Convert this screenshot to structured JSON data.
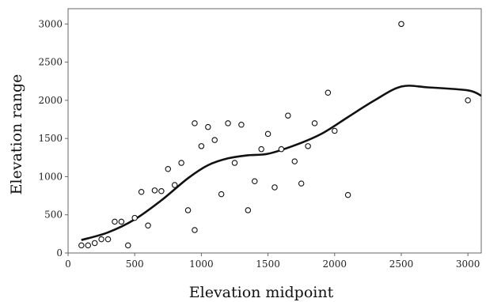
{
  "chart_data": {
    "type": "scatter",
    "xlabel": "Elevation midpoint",
    "ylabel": "Elevation range",
    "xlim": [
      0,
      3100
    ],
    "ylim": [
      0,
      3200
    ],
    "xticks": [
      0,
      500,
      1000,
      1500,
      2000,
      2500,
      3000
    ],
    "yticks": [
      0,
      500,
      1000,
      1500,
      2000,
      2500,
      3000
    ],
    "grid": false,
    "series": [
      {
        "kind": "points",
        "marker": "open-circle",
        "points": [
          [
            100,
            100
          ],
          [
            150,
            100
          ],
          [
            200,
            130
          ],
          [
            250,
            180
          ],
          [
            300,
            180
          ],
          [
            350,
            410
          ],
          [
            400,
            410
          ],
          [
            450,
            100
          ],
          [
            500,
            460
          ],
          [
            550,
            800
          ],
          [
            600,
            360
          ],
          [
            650,
            820
          ],
          [
            700,
            810
          ],
          [
            750,
            1100
          ],
          [
            800,
            890
          ],
          [
            850,
            1180
          ],
          [
            900,
            560
          ],
          [
            950,
            300
          ],
          [
            950,
            1700
          ],
          [
            1000,
            1400
          ],
          [
            1050,
            1650
          ],
          [
            1100,
            1480
          ],
          [
            1150,
            770
          ],
          [
            1200,
            1700
          ],
          [
            1250,
            1180
          ],
          [
            1300,
            1680
          ],
          [
            1350,
            560
          ],
          [
            1400,
            940
          ],
          [
            1450,
            1360
          ],
          [
            1500,
            1560
          ],
          [
            1550,
            860
          ],
          [
            1600,
            1360
          ],
          [
            1650,
            1800
          ],
          [
            1700,
            1200
          ],
          [
            1750,
            910
          ],
          [
            1800,
            1400
          ],
          [
            1850,
            1700
          ],
          [
            1950,
            2100
          ],
          [
            2000,
            1600
          ],
          [
            2100,
            760
          ],
          [
            2500,
            3000
          ],
          [
            3000,
            2000
          ]
        ]
      },
      {
        "kind": "fit-line",
        "points": [
          [
            100,
            170
          ],
          [
            300,
            270
          ],
          [
            500,
            440
          ],
          [
            700,
            690
          ],
          [
            900,
            980
          ],
          [
            1050,
            1150
          ],
          [
            1200,
            1240
          ],
          [
            1350,
            1280
          ],
          [
            1500,
            1300
          ],
          [
            1700,
            1410
          ],
          [
            1900,
            1560
          ],
          [
            2100,
            1780
          ],
          [
            2300,
            2000
          ],
          [
            2500,
            2180
          ],
          [
            2700,
            2170
          ],
          [
            3000,
            2130
          ],
          [
            3100,
            2060
          ]
        ]
      }
    ]
  }
}
